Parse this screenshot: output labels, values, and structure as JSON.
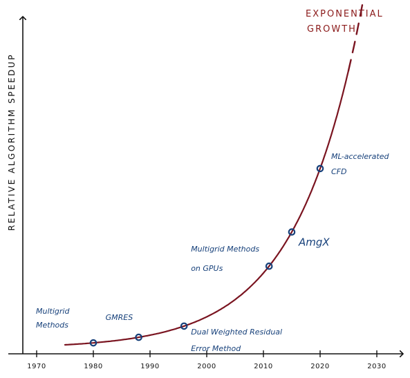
{
  "chart_data": {
    "type": "line",
    "title": "",
    "xlabel": "",
    "ylabel": "RELATIVE ALGORITHM SPEEDUP",
    "xlim": [
      1965,
      2035
    ],
    "x_ticks": [
      1970,
      1980,
      1990,
      2000,
      2010,
      2020,
      2030
    ],
    "y_ticks": [],
    "grid": false,
    "curve": {
      "color": "#7a1420",
      "solid_range": [
        1975,
        2025
      ],
      "dashed_range": [
        2025,
        2033
      ],
      "model": "exponential"
    },
    "annotation_text": "EXPONENTIAL GROWTH",
    "annotation_lines": [
      "EXPONENTIAL",
      "GROWTH"
    ],
    "milestones": [
      {
        "x": 1980,
        "lines": [
          "Multigrid",
          "Methods"
        ]
      },
      {
        "x": 1988,
        "lines": [
          "GMRES"
        ]
      },
      {
        "x": 1996,
        "lines": [
          "Dual Weighted Residual",
          "Error Method"
        ]
      },
      {
        "x": 2011,
        "lines": [
          "Multigrid Methods",
          "on GPUs"
        ]
      },
      {
        "x": 2015,
        "lines": [
          "AmgX"
        ]
      },
      {
        "x": 2020,
        "lines": [
          "ML-accelerated",
          "CFD"
        ]
      }
    ],
    "marker_color": "#16407a"
  }
}
